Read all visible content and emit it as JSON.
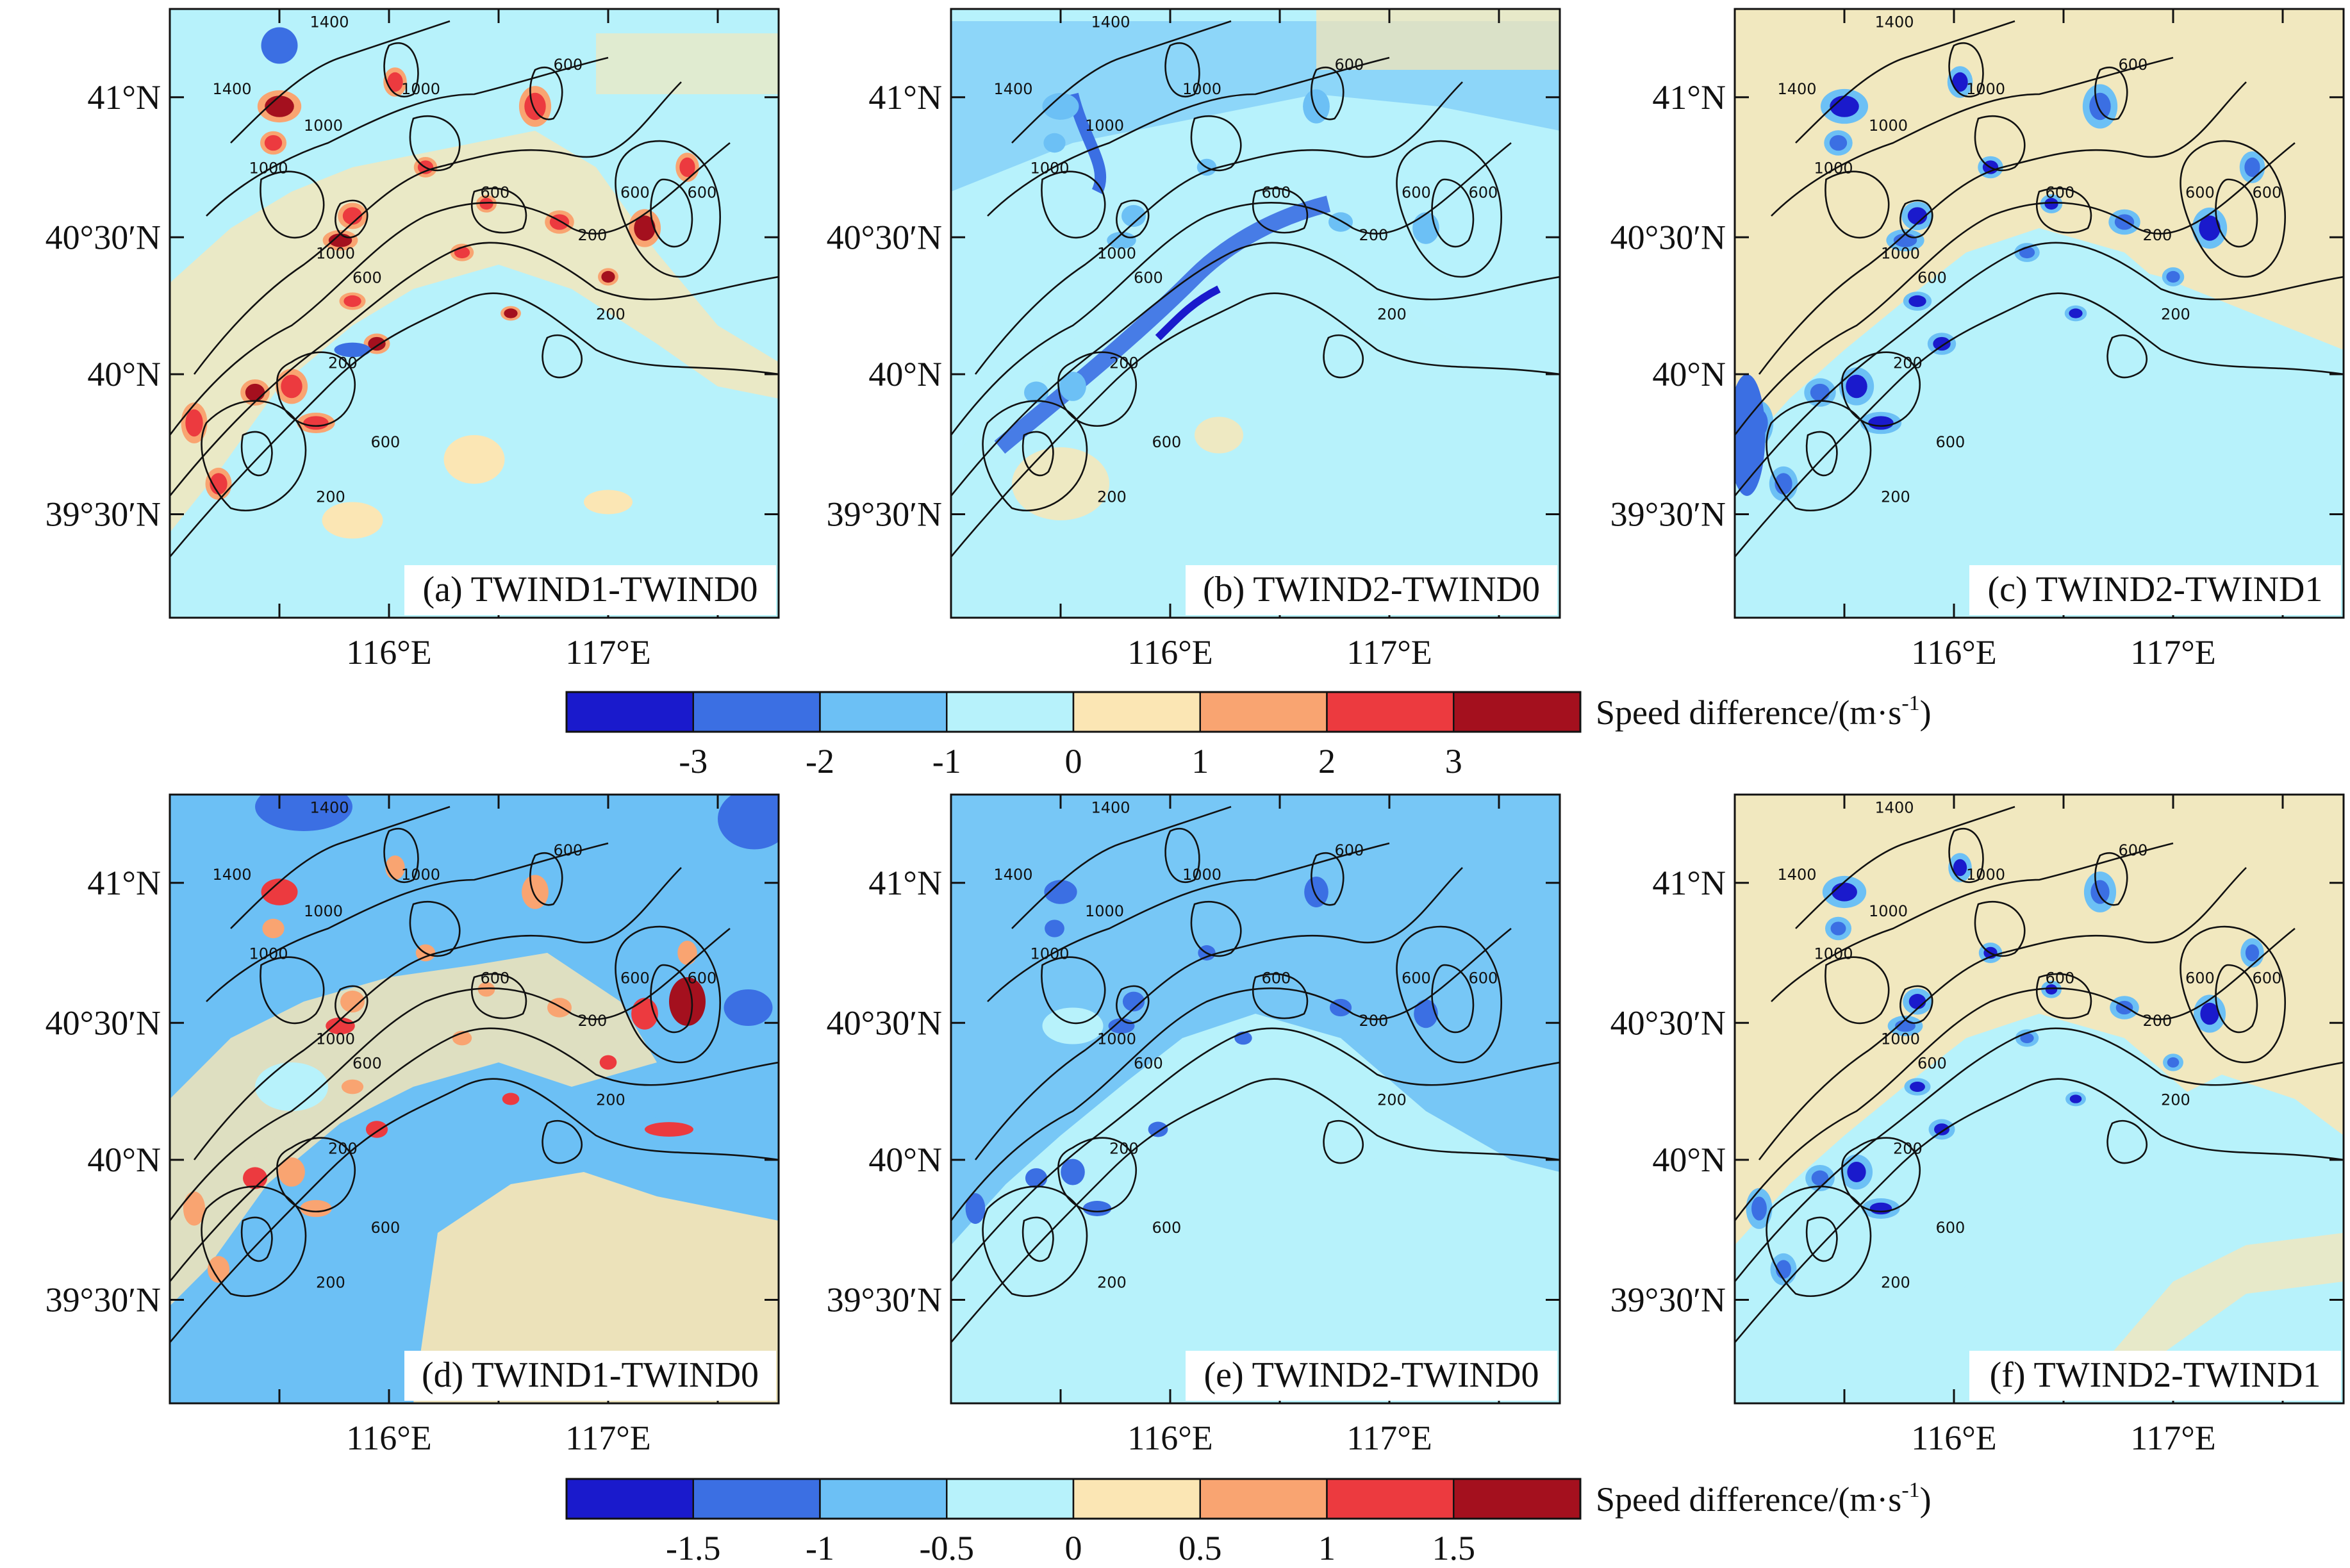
{
  "colors": {
    "c_m4": "#1a1acc",
    "c_m3": "#3b6fe3",
    "c_m2": "#6cc0f5",
    "c_m1": "#b7f2fb",
    "c_p1": "#fbe6b4",
    "c_p2": "#f9a471",
    "c_p3": "#ec3a3f",
    "c_p4": "#a4101e",
    "contour": "#111111"
  },
  "axes": {
    "lat_ticks": [
      "41°N",
      "40°30′N",
      "40°N",
      "39°30′N"
    ],
    "lon_ticks": [
      "116°E",
      "117°E"
    ]
  },
  "contour_labels": [
    "1400",
    "1400",
    "1000",
    "1000",
    "1000",
    "600",
    "600",
    "600",
    "600",
    "200",
    "200",
    "200",
    "600",
    "1000",
    "600",
    "200"
  ],
  "panels": [
    {
      "id": "a",
      "label": "(a) TWIND1-TWIND0",
      "scheme": "warm"
    },
    {
      "id": "b",
      "label": "(b) TWIND2-TWIND0",
      "scheme": "cool"
    },
    {
      "id": "c",
      "label": "(c) TWIND2-TWIND1",
      "scheme": "mixed"
    },
    {
      "id": "d",
      "label": "(d) TWIND1-TWIND0",
      "scheme": "dwarm"
    },
    {
      "id": "e",
      "label": "(e) TWIND2-TWIND0",
      "scheme": "ecool"
    },
    {
      "id": "f",
      "label": "(f) TWIND2-TWIND1",
      "scheme": "fmixed"
    }
  ],
  "colorbars": [
    {
      "title": "Speed difference/(m·s",
      "title_sup": "-1",
      "title_end": ")",
      "ticks": [
        "-3",
        "-2",
        "-1",
        "0",
        "1",
        "2",
        "3"
      ]
    },
    {
      "title": "Speed difference/(m·s",
      "title_sup": "-1",
      "title_end": ")",
      "ticks": [
        "-1.5",
        "-1",
        "-0.5",
        "0",
        "0.5",
        "1",
        "1.5"
      ]
    }
  ]
}
